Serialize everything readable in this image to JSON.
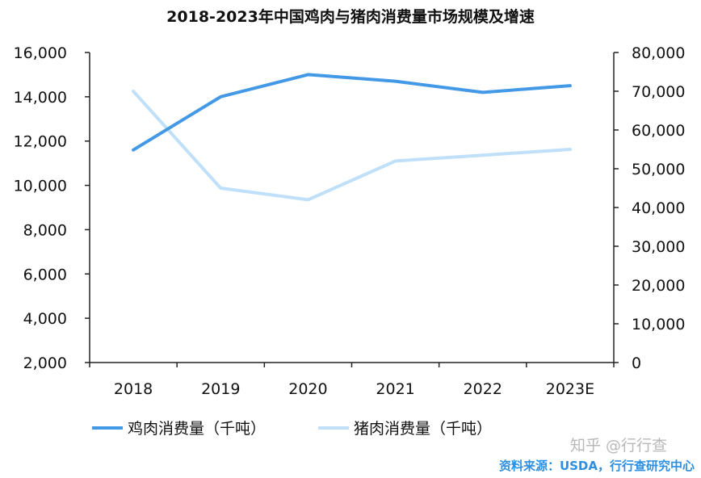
{
  "chart_data": {
    "type": "line",
    "title": "2018-2023年中国鸡肉与猪肉消费量市场规模及增速",
    "categories": [
      "2018",
      "2019",
      "2020",
      "2021",
      "2022",
      "2023E"
    ],
    "y_left": {
      "min": 2000,
      "max": 16000,
      "ticks": [
        "16,000",
        "14,000",
        "12,000",
        "10,000",
        "8,000",
        "6,000",
        "4,000",
        "2,000"
      ]
    },
    "y_right": {
      "min": 0,
      "max": 80000,
      "ticks": [
        "80,000",
        "70,000",
        "60,000",
        "50,000",
        "40,000",
        "30,000",
        "20,000",
        "10,000",
        "0"
      ]
    },
    "series": [
      {
        "name": "鸡肉消费量（千吨）",
        "axis": "left",
        "color": "#4499e6",
        "values": [
          11600,
          14000,
          15000,
          14700,
          14200,
          14500
        ]
      },
      {
        "name": "猪肉消费量（千吨）",
        "axis": "right",
        "color": "#bfe0f8",
        "values": [
          70000,
          45000,
          42000,
          52000,
          53500,
          55000
        ]
      }
    ],
    "legend_position": "bottom"
  },
  "watermark": "知乎 @行行查",
  "source": "资料来源：USDA，行行查研究中心"
}
